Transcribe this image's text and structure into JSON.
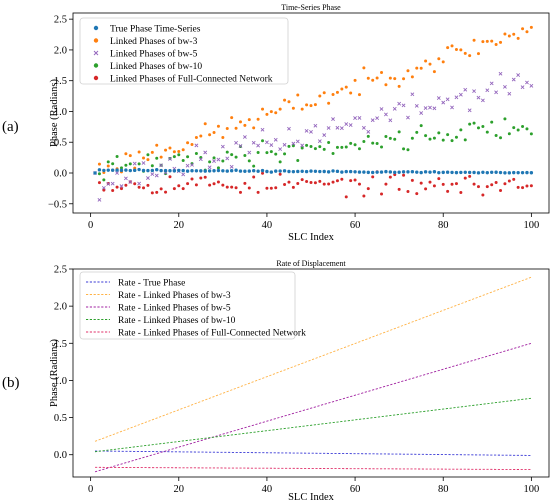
{
  "chart_data": [
    {
      "type": "scatter",
      "panel_label": "(a)",
      "title": "Time-Series Phase",
      "xlabel": "SLC Index",
      "ylabel": "Phase (Radians)",
      "xlim": [
        -4,
        104
      ],
      "ylim": [
        -0.65,
        2.6
      ],
      "xticks": [
        0,
        20,
        40,
        60,
        80,
        100
      ],
      "yticks": [
        -0.5,
        0.0,
        0.5,
        1.0,
        1.5,
        2.0,
        2.5
      ],
      "ytick_labels": [
        "−0.5",
        "0.0",
        "0.5",
        "1.0",
        "1.5",
        "2.0",
        "2.5"
      ],
      "grid": false,
      "legend": "top-left",
      "series": [
        {
          "name": "True Phase Time-Series",
          "color": "#1f77b4",
          "marker": "dot",
          "trend": [
            0.05,
            0.0
          ],
          "noise": 0.008,
          "seed": 11
        },
        {
          "name": "Linked Phases of bw-3",
          "color": "#ff7f0e",
          "marker": "dot",
          "trend": [
            0.02,
            2.35
          ],
          "noise": 0.13,
          "seed": 23
        },
        {
          "name": "Linked Phases of bw-5",
          "color": "#9467bd",
          "marker": "x",
          "trend": [
            -0.2,
            1.5
          ],
          "noise": 0.16,
          "seed": 37
        },
        {
          "name": "Linked Phases of bw-10",
          "color": "#2ca02c",
          "marker": "dot",
          "trend": [
            0.04,
            0.78
          ],
          "noise": 0.13,
          "seed": 41
        },
        {
          "name": "Linked Phases of Full-Connected Network",
          "color": "#d62728",
          "marker": "dot",
          "trend": [
            -0.17,
            -0.2
          ],
          "noise": 0.12,
          "seed": 53
        }
      ]
    },
    {
      "type": "line",
      "panel_label": "(b)",
      "title": "Rate of Displacement",
      "xlabel": "SLC Index",
      "ylabel": "Phase (Radians)",
      "xlim": [
        -4,
        104
      ],
      "ylim": [
        -0.3,
        2.5
      ],
      "xticks": [
        0,
        20,
        40,
        60,
        80,
        100
      ],
      "yticks": [
        0.0,
        0.5,
        1.0,
        1.5,
        2.0,
        2.5
      ],
      "ytick_labels": [
        "0.0",
        "0.5",
        "1.0",
        "1.5",
        "2.0",
        "2.5"
      ],
      "grid": false,
      "legend": "top-left",
      "series": [
        {
          "name": "Rate - True Phase",
          "color": "#3b3bd6",
          "x": [
            1,
            100
          ],
          "y": [
            0.05,
            -0.01
          ]
        },
        {
          "name": "Rate - Linked Phases of bw-3",
          "color": "#ffb347",
          "x": [
            1,
            100
          ],
          "y": [
            0.18,
            2.39
          ]
        },
        {
          "name": "Rate - Linked Phases of bw-5",
          "color": "#a020a0",
          "x": [
            1,
            100
          ],
          "y": [
            -0.23,
            1.5
          ]
        },
        {
          "name": "Rate - Linked Phases of bw-10",
          "color": "#2ca02c",
          "x": [
            1,
            100
          ],
          "y": [
            0.04,
            0.76
          ]
        },
        {
          "name": "Rate - Linked Phases of Full-Connected Network",
          "color": "#e0306a",
          "x": [
            1,
            100
          ],
          "y": [
            -0.17,
            -0.2
          ]
        }
      ]
    }
  ]
}
